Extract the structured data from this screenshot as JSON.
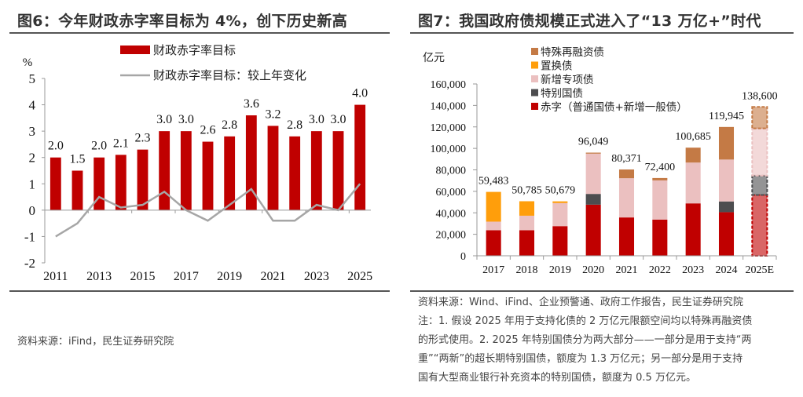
{
  "left_panel": {
    "title": "图6：今年财政赤字率目标为 4%，创下历史新高",
    "source": "资料来源：iFind，民生证券研究院"
  },
  "right_panel": {
    "title": "图7：我国政府债规模正式进入了“13 万亿+”时代",
    "source_lines": [
      "资料来源：Wind、iFind、企业预警通、政府工作报告，民生证券研究院",
      "注：1. 假设 2025 年用于支持化债的 2 万亿元限额空间均以特殊再融资债",
      "的形式使用。2. 2025 年特别国债分为两大部分——一部分是用于支持“两",
      "重”“两新”的超长期特别国债，额度为 1.3 万亿元；另一部分是用于支持",
      "国有大型商业银行补充资本的特别国债，额度为 0.5 万亿元。"
    ]
  },
  "chart_data": [
    {
      "type": "bar",
      "title": "今年财政赤字率目标为 4%，创下历史新高",
      "ylabel": "%",
      "xlabel": "",
      "ylim": [
        -2,
        5
      ],
      "yticks": [
        -2,
        -1,
        0,
        1,
        2,
        3,
        4,
        5
      ],
      "categories": [
        "2011",
        "2012",
        "2013",
        "2014",
        "2015",
        "2016",
        "2017",
        "2018",
        "2019",
        "2020",
        "2021",
        "2022",
        "2023",
        "2024",
        "2025"
      ],
      "xtick_labels": [
        "2011",
        "2013",
        "2015",
        "2017",
        "2019",
        "2021",
        "2023",
        "2025"
      ],
      "legend_position": "top-center",
      "series": [
        {
          "name": "财政赤字率目标",
          "kind": "bar",
          "color": "#C00000",
          "values": [
            2.0,
            1.5,
            2.0,
            2.1,
            2.3,
            3.0,
            3.0,
            2.6,
            2.8,
            3.6,
            3.2,
            2.8,
            3.0,
            3.0,
            4.0
          ],
          "labels": [
            "2.0",
            "1.5",
            "2.0",
            "2.1",
            "2.3",
            "3.0",
            "3.0",
            "2.6",
            "2.8",
            "3.6",
            "3.2",
            "2.8",
            "3.0",
            "3.0",
            "4.0"
          ]
        },
        {
          "name": "财政赤字率目标：较上年变化",
          "kind": "line",
          "color": "#A6A6A6",
          "values": [
            -1.0,
            -0.5,
            0.5,
            0.1,
            0.2,
            0.7,
            0.0,
            -0.4,
            0.2,
            0.8,
            -0.4,
            -0.4,
            0.2,
            0.0,
            1.0
          ]
        }
      ]
    },
    {
      "type": "bar",
      "stacked": true,
      "title": "我国政府债规模正式进入了“13 万亿+”时代",
      "ylabel": "亿元",
      "xlabel": "",
      "ylim": [
        0,
        160000
      ],
      "yticks": [
        0,
        20000,
        40000,
        60000,
        80000,
        100000,
        120000,
        140000,
        160000
      ],
      "ytick_labels": [
        "0",
        "20,000",
        "40,000",
        "60,000",
        "80,000",
        "100,000",
        "120,000",
        "140,000",
        "160,000"
      ],
      "categories": [
        "2017",
        "2018",
        "2019",
        "2020",
        "2021",
        "2022",
        "2023",
        "2024",
        "2025E"
      ],
      "legend_position": "top-left",
      "series": [
        {
          "name": "赤字（普通国债+新增一般债）",
          "color": "#C00000",
          "values": [
            23800,
            23800,
            27600,
            47600,
            35700,
            33700,
            48800,
            40600,
            56600
          ]
        },
        {
          "name": "特别国债",
          "color": "#4D4D4F",
          "values": [
            0,
            0,
            0,
            10000,
            0,
            0,
            0,
            10000,
            18000
          ]
        },
        {
          "name": "新增专项债",
          "color": "#EBC0C0",
          "values": [
            8000,
            13500,
            21500,
            37500,
            36500,
            36500,
            38000,
            39000,
            44000
          ]
        },
        {
          "name": "置换债",
          "color": "#FF9E0B",
          "values": [
            27683,
            13485,
            1579,
            0,
            0,
            0,
            0,
            0,
            0
          ]
        },
        {
          "name": "特殊再融资债",
          "color": "#C47A45",
          "values": [
            0,
            0,
            0,
            949,
            8171,
            2200,
            13885,
            30345,
            20000
          ]
        }
      ],
      "totals": [
        59483,
        50785,
        50679,
        96049,
        80371,
        72400,
        100685,
        119945,
        138600
      ],
      "total_labels": [
        "59,483",
        "50,785",
        "50,679",
        "96,049",
        "80,371",
        "72,400",
        "100,685",
        "119,945",
        "138,600"
      ],
      "estimate_category": "2025E"
    }
  ]
}
